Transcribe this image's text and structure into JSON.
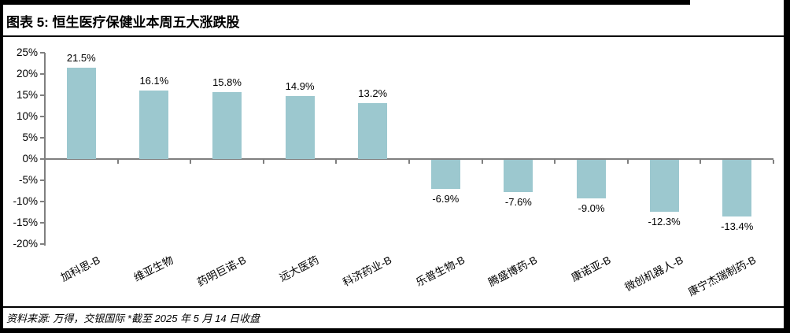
{
  "header": {
    "title": "图表 5: 恒生医疗保健业本周五大涨跌股"
  },
  "footer": {
    "source": "资料来源: 万得，交银国际   *截至 2025 年 5 月 14 日收盘"
  },
  "chart_data": {
    "type": "bar",
    "title": "恒生医疗保健业本周五大涨跌股",
    "categories": [
      "加科思-B",
      "维亚生物",
      "药明巨诺-B",
      "远大医药",
      "科济药业-B",
      "乐普生物-B",
      "腾盛博药-B",
      "康诺亚-B",
      "微创机器人-B",
      "康宁杰瑞制药-B"
    ],
    "values": [
      21.5,
      16.1,
      15.8,
      14.9,
      13.2,
      -6.9,
      -7.6,
      -9.0,
      -12.3,
      -13.4
    ],
    "value_labels": [
      "21.5%",
      "16.1%",
      "15.8%",
      "14.9%",
      "13.2%",
      "-6.9%",
      "-7.6%",
      "-9.0%",
      "-12.3%",
      "-13.4%"
    ],
    "xlabel": "",
    "ylabel": "",
    "ylim": [
      -20,
      25
    ],
    "ytick_values": [
      25,
      20,
      15,
      10,
      5,
      0,
      -5,
      -10,
      -15,
      -20
    ],
    "ytick_labels": [
      "25%",
      "20%",
      "15%",
      "10%",
      "5%",
      "0%",
      "-5%",
      "-10%",
      "-15%",
      "-20%"
    ],
    "grid": false,
    "legend": "none",
    "bar_color": "#9cc8cf",
    "axis_color": "#7f7f7f"
  }
}
